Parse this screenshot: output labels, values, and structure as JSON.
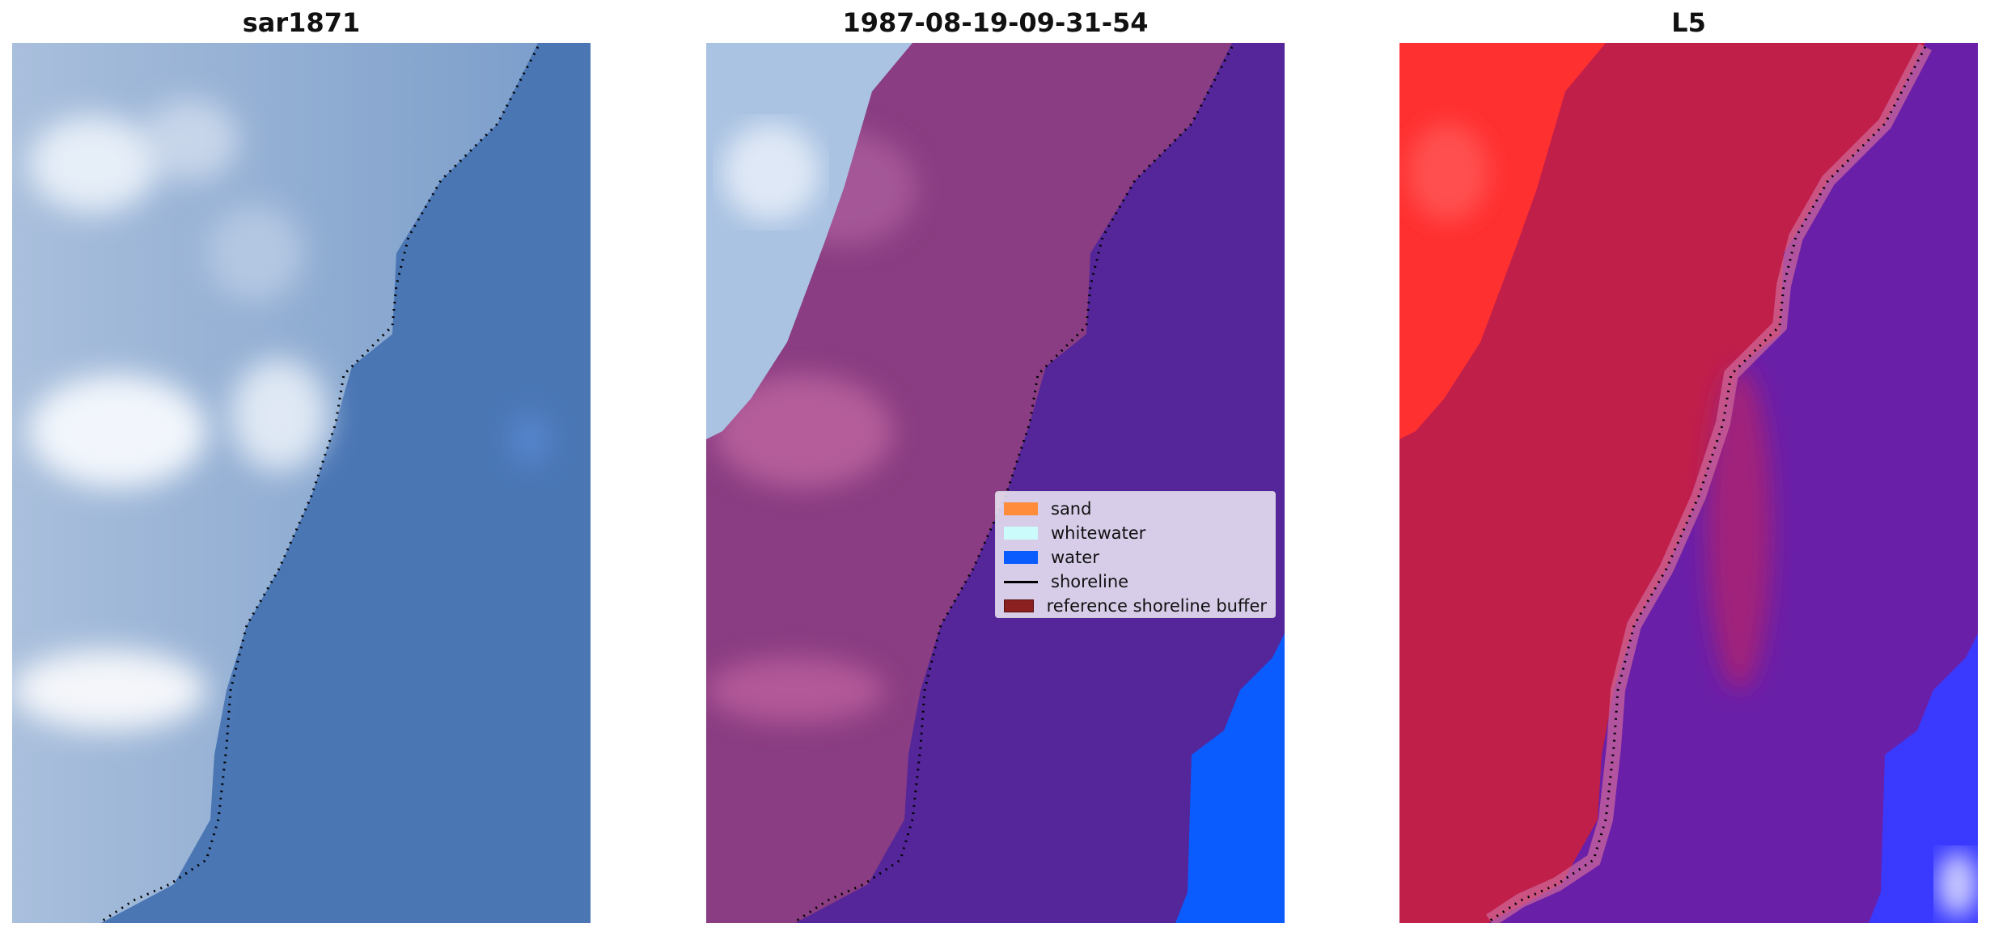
{
  "panels": [
    {
      "title": "sar1871"
    },
    {
      "title": "1987-08-19-09-31-54"
    },
    {
      "title": "L5"
    }
  ],
  "legend": {
    "items": [
      {
        "label": "sand",
        "color": "#ff8c3a",
        "kind": "patch"
      },
      {
        "label": "whitewater",
        "color": "#cbfbfb",
        "kind": "patch"
      },
      {
        "label": "water",
        "color": "#0a5cff",
        "kind": "patch"
      },
      {
        "label": "shoreline",
        "color": "#000000",
        "kind": "line"
      },
      {
        "label": "reference shoreline buffer",
        "color": "#8b2020",
        "kind": "patch"
      }
    ]
  },
  "colors": {
    "rgb_ocean": "#4a76b4",
    "rgb_foam": "#dde6f2",
    "class_land": "#8a3d82",
    "class_water_sea": "#54269a",
    "class_water": "#0a5cff",
    "index_land": "#c01f4a",
    "index_red": "#ff3b3b",
    "index_sea": "#6a1fa8",
    "index_blue": "#3a3aff"
  }
}
